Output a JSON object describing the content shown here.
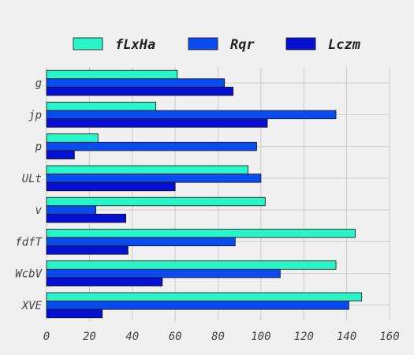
{
  "chart_data": {
    "type": "bar",
    "orientation": "horizontal",
    "categories": [
      "g",
      "jp",
      "p",
      "ULt",
      "v",
      "fdfT",
      "WcbV",
      "XVE"
    ],
    "series": [
      {
        "name": "fLxHa",
        "color": "#2af5c8",
        "values": [
          61,
          51,
          24,
          94,
          102,
          144,
          135,
          147
        ]
      },
      {
        "name": "Rqr",
        "color": "#0a4bf0",
        "values": [
          83,
          135,
          98,
          100,
          23,
          88,
          109,
          141
        ]
      },
      {
        "name": "Lczm",
        "color": "#0610d2",
        "values": [
          87,
          103,
          13,
          60,
          37,
          38,
          54,
          26
        ]
      }
    ],
    "xticks": [
      0,
      20,
      40,
      60,
      80,
      100,
      120,
      140,
      160
    ],
    "xlim": [
      0,
      160
    ],
    "grid": true,
    "legend_position": "top-center",
    "title": "",
    "xlabel": "",
    "ylabel": ""
  }
}
